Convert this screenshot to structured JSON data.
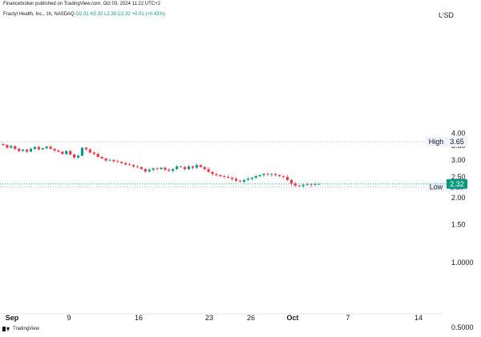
{
  "header": {
    "publish_note": "Financebroker published on TradingView.com, Oct 03, 2024 11:22 UTC+2",
    "symbol": "Fractyl Health, Inc., 1h, NASDAQ",
    "open": "O2.31",
    "high": "H2.32",
    "low": "L2.30",
    "close": "C2.32",
    "change": "+0.01 (+0.43%)"
  },
  "currency": "USD",
  "footer": {
    "brand": "TradingView"
  },
  "colors": {
    "up": "#089981",
    "down": "#f23645",
    "high_line": "#b2b5be",
    "last_line": "#089981"
  },
  "chart_data": {
    "type": "candlestick",
    "y_axis": {
      "scale": "log",
      "ticks": [
        "4.00",
        "3.50",
        "3.00",
        "2.50",
        "2.00",
        "1.50",
        "1.0000",
        "0.5000"
      ],
      "ylim": [
        0.48,
        4.6
      ]
    },
    "x_axis": {
      "ticks": [
        "Sep",
        "9",
        "16",
        "23",
        "26",
        "Oct",
        "7",
        "14"
      ]
    },
    "markers": [
      {
        "label": "High",
        "value": "3.65"
      },
      {
        "label": "Low",
        "value": "2.25"
      }
    ],
    "last_price": "2.32",
    "closes": [
      3.52,
      3.42,
      3.48,
      3.38,
      3.3,
      3.35,
      3.28,
      3.38,
      3.45,
      3.36,
      3.4,
      3.46,
      3.38,
      3.32,
      3.28,
      3.2,
      3.3,
      3.18,
      3.08,
      3.14,
      3.42,
      3.36,
      3.25,
      3.2,
      3.1,
      3.05,
      2.98,
      3.0,
      2.96,
      2.94,
      2.9,
      2.86,
      2.84,
      2.8,
      2.78,
      2.72,
      2.65,
      2.7,
      2.74,
      2.72,
      2.76,
      2.7,
      2.67,
      2.72,
      2.8,
      2.78,
      2.72,
      2.8,
      2.76,
      2.84,
      2.78,
      2.72,
      2.64,
      2.58,
      2.55,
      2.52,
      2.5,
      2.48,
      2.45,
      2.4,
      2.38,
      2.42,
      2.45,
      2.48,
      2.52,
      2.55,
      2.58,
      2.56,
      2.58,
      2.55,
      2.52,
      2.5,
      2.42,
      2.33,
      2.28,
      2.27,
      2.3,
      2.31,
      2.3,
      2.32,
      2.32
    ]
  }
}
